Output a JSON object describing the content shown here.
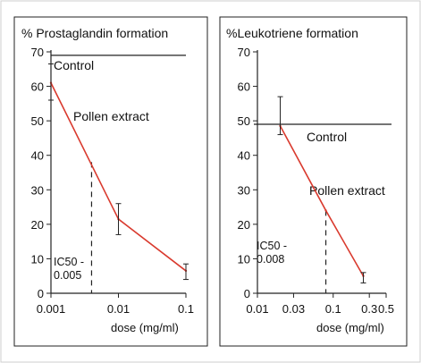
{
  "chart_data": [
    {
      "type": "line",
      "title": "% Prostaglandin formation",
      "xlabel": "dose  (mg/ml)",
      "ylabel": "",
      "x_scale": "log",
      "x_ticks": [
        "0.001",
        "0.01",
        "0.1"
      ],
      "x_tick_values": [
        0.001,
        0.01,
        0.1
      ],
      "xlim": [
        0.001,
        0.1
      ],
      "y_ticks": [
        "0",
        "10",
        "20",
        "30",
        "40",
        "50",
        "60",
        "70"
      ],
      "ylim": [
        0,
        70
      ],
      "series": [
        {
          "name": "Pollen extract",
          "color": "#d93a2e",
          "x": [
            0.001,
            0.01,
            0.1
          ],
          "y": [
            61,
            21.5,
            6.5
          ],
          "error": [
            [
              56,
              66.5
            ],
            [
              17,
              26
            ],
            [
              4,
              8.5
            ]
          ]
        }
      ],
      "reference_line": {
        "name": "Control",
        "y": 69
      },
      "ic50": {
        "label_line1": "IC50 -",
        "label_line2": "0.005",
        "x": 0.004,
        "y": 38
      }
    },
    {
      "type": "line",
      "title": "%Leukotriene formation",
      "xlabel": "dose  (mg/ml)",
      "ylabel": "",
      "x_scale": "log",
      "x_ticks": [
        "0.01",
        "0.03",
        "0.1",
        "0.3",
        "0.5"
      ],
      "x_tick_values": [
        0.01,
        0.03,
        0.1,
        0.3,
        0.5
      ],
      "xlim": [
        0.01,
        0.5
      ],
      "y_ticks": [
        "0",
        "10",
        "20",
        "30",
        "40",
        "50",
        "60",
        "70"
      ],
      "ylim": [
        0,
        70
      ],
      "series": [
        {
          "name": "Pollen extract",
          "color": "#d93a2e",
          "x": [
            0.02,
            0.08,
            0.25
          ],
          "y": [
            48.5,
            24,
            5
          ],
          "error": [
            [
              46,
              57
            ],
            null,
            [
              3,
              6
            ]
          ]
        }
      ],
      "reference_line": {
        "name": "Control",
        "y": 49
      },
      "ic50": {
        "label_line1": "IC50 -",
        "label_line2": "0.008",
        "x": 0.08,
        "y": 24
      }
    }
  ]
}
